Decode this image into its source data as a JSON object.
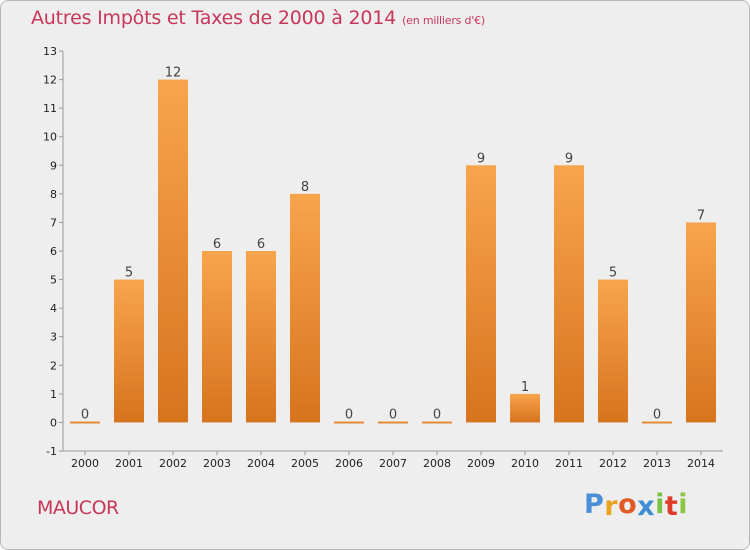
{
  "header": {
    "title": "Autres Impôts et Taxes de 2000 à 2014",
    "unit": "(en milliers d'€)"
  },
  "footer": {
    "place": "MAUCOR",
    "logo_letters": [
      "P",
      "r",
      "o",
      "x",
      "i",
      "t",
      "i"
    ]
  },
  "colors": {
    "title": "#c8375a",
    "bar_top": "#f7a54c",
    "bar_bottom": "#d8731e",
    "logo": [
      "#4a90d9",
      "#e8a321",
      "#e05a25",
      "#3e8ed6",
      "#7cc242",
      "#e03a2a",
      "#8dc63f"
    ]
  },
  "chart_data": {
    "type": "bar",
    "categories": [
      "2000",
      "2001",
      "2002",
      "2003",
      "2004",
      "2005",
      "2006",
      "2007",
      "2008",
      "2009",
      "2010",
      "2011",
      "2012",
      "2013",
      "2014"
    ],
    "values": [
      0,
      5,
      12,
      6,
      6,
      8,
      0,
      0,
      0,
      9,
      1,
      9,
      5,
      0,
      7
    ],
    "title": "Autres Impôts et Taxes de 2000 à 2014",
    "subtitle": "(en milliers d'€)",
    "ylim": [
      -1,
      13
    ],
    "yticks": [
      -1,
      0,
      1,
      2,
      3,
      4,
      5,
      6,
      7,
      8,
      9,
      10,
      11,
      12,
      13
    ],
    "grid": false,
    "legend": "none"
  }
}
